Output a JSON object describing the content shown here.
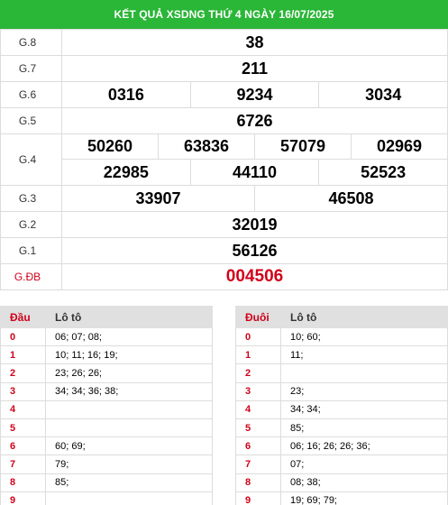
{
  "header": {
    "title": "KẾT QUẢ XSDNG THỨ 4 NGÀY 16/07/2025"
  },
  "prizes": [
    {
      "label": "G.8",
      "numbers": [
        "38"
      ]
    },
    {
      "label": "G.7",
      "numbers": [
        "211"
      ]
    },
    {
      "label": "G.6",
      "numbers": [
        "0316",
        "9234",
        "3034"
      ]
    },
    {
      "label": "G.5",
      "numbers": [
        "6726"
      ]
    },
    {
      "label": "G.4",
      "numbers_top": [
        "50260",
        "63836",
        "57079",
        "02969"
      ],
      "numbers_bottom": [
        "22985",
        "44110",
        "52523"
      ]
    },
    {
      "label": "G.3",
      "numbers": [
        "33907",
        "46508"
      ]
    },
    {
      "label": "G.2",
      "numbers": [
        "32019"
      ]
    },
    {
      "label": "G.1",
      "numbers": [
        "56126"
      ]
    },
    {
      "label": "G.ĐB",
      "numbers": [
        "004506"
      ]
    }
  ],
  "dau_table": {
    "col_key": "Đầu",
    "col_val": "Lô tô",
    "rows": [
      {
        "k": "0",
        "v": "06; 07; 08;"
      },
      {
        "k": "1",
        "v": "10; 11; 16; 19;"
      },
      {
        "k": "2",
        "v": "23; 26; 26;"
      },
      {
        "k": "3",
        "v": "34; 34; 36; 38;"
      },
      {
        "k": "4",
        "v": ""
      },
      {
        "k": "5",
        "v": ""
      },
      {
        "k": "6",
        "v": "60; 69;"
      },
      {
        "k": "7",
        "v": "79;"
      },
      {
        "k": "8",
        "v": "85;"
      },
      {
        "k": "9",
        "v": ""
      }
    ]
  },
  "duoi_table": {
    "col_key": "Đuôi",
    "col_val": "Lô tô",
    "rows": [
      {
        "k": "0",
        "v": "10; 60;"
      },
      {
        "k": "1",
        "v": "11;"
      },
      {
        "k": "2",
        "v": ""
      },
      {
        "k": "3",
        "v": "23;"
      },
      {
        "k": "4",
        "v": "34; 34;"
      },
      {
        "k": "5",
        "v": "85;"
      },
      {
        "k": "6",
        "v": "06; 16; 26; 26; 36;"
      },
      {
        "k": "7",
        "v": "07;"
      },
      {
        "k": "8",
        "v": "08; 38;"
      },
      {
        "k": "9",
        "v": "19; 69; 79;"
      }
    ]
  },
  "colors": {
    "header_bg": "#2ab637",
    "special": "#d0021b"
  }
}
